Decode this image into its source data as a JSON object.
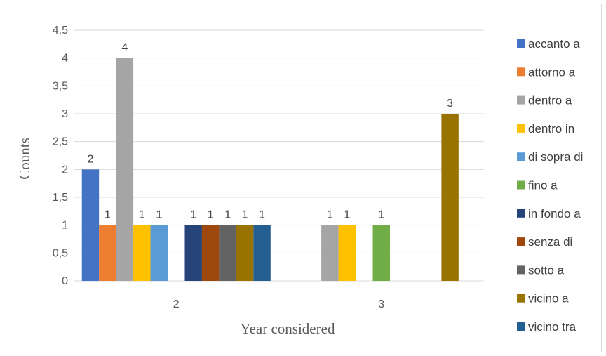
{
  "chart_data": {
    "type": "bar",
    "title": "",
    "xlabel": "Year considered",
    "ylabel": "Counts",
    "categories": [
      "2",
      "3"
    ],
    "ylim": [
      0,
      4.5
    ],
    "yticks": [
      "0",
      "0,5",
      "1",
      "1,5",
      "2",
      "2,5",
      "3",
      "3,5",
      "4",
      "4,5"
    ],
    "grid": true,
    "legend_position": "right",
    "series": [
      {
        "name": "accanto a",
        "color": "#4472c4",
        "values": [
          2,
          null
        ]
      },
      {
        "name": "attorno a",
        "color": "#ed7d31",
        "values": [
          1,
          null
        ]
      },
      {
        "name": "dentro a",
        "color": "#a5a5a5",
        "values": [
          4,
          1
        ]
      },
      {
        "name": "dentro in",
        "color": "#ffc000",
        "values": [
          1,
          1
        ]
      },
      {
        "name": "di sopra di",
        "color": "#5b9bd5",
        "values": [
          1,
          null
        ]
      },
      {
        "name": "fino a",
        "color": "#70ad47",
        "values": [
          null,
          1
        ]
      },
      {
        "name": "in fondo a",
        "color": "#264478",
        "values": [
          1,
          null
        ]
      },
      {
        "name": "senza di",
        "color": "#9e480e",
        "values": [
          1,
          null
        ]
      },
      {
        "name": "sotto a",
        "color": "#636363",
        "values": [
          1,
          null
        ]
      },
      {
        "name": "vicino a",
        "color": "#997300",
        "values": [
          1,
          3
        ]
      },
      {
        "name": "vicino tra",
        "color": "#255e91",
        "values": [
          1,
          null
        ]
      }
    ]
  }
}
